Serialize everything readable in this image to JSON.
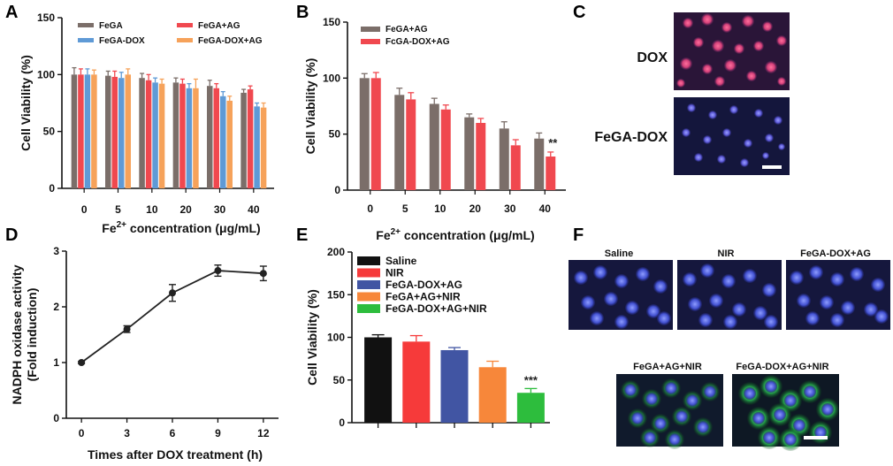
{
  "panel_labels": [
    "A",
    "B",
    "C",
    "D",
    "E",
    "F"
  ],
  "colors": {
    "gray": "#7b6e69",
    "red": "#f0484f",
    "blue": "#5f9ad6",
    "orange": "#f6a25a",
    "black": "#111111",
    "red_e": "#f63a3a",
    "blue_e": "#4155a3",
    "orange_e": "#f7873a",
    "green_e": "#2dbd3d",
    "line_d": "#222222"
  },
  "chart_data": [
    {
      "id": "A",
      "type": "bar",
      "categories": [
        "0",
        "5",
        "10",
        "20",
        "30",
        "40"
      ],
      "xlabel": "Fe2+ concentration (μg/mL)",
      "xlabel_parts": [
        "Fe",
        "2+",
        " concentration (μg/mL)"
      ],
      "ylabel": "Cell Viability (%)",
      "ylim": [
        0,
        150
      ],
      "yticks": [
        0,
        50,
        100,
        150
      ],
      "legend_placement": "top",
      "series": [
        {
          "name": "FeGA",
          "color_key": "gray",
          "values": [
            100,
            99,
            97,
            93,
            90,
            84
          ],
          "errors": [
            6,
            4,
            4,
            4,
            5,
            3
          ]
        },
        {
          "name": "FeGA+AG",
          "color_key": "red",
          "values": [
            100,
            98,
            95,
            92,
            88,
            87
          ],
          "errors": [
            5,
            5,
            5,
            4,
            4,
            3
          ]
        },
        {
          "name": "FeGA-DOX",
          "color_key": "blue",
          "values": [
            100,
            97,
            93,
            88,
            81,
            72
          ],
          "errors": [
            5,
            5,
            4,
            4,
            4,
            3
          ]
        },
        {
          "name": "FeGA-DOX+AG",
          "color_key": "orange",
          "values": [
            100,
            100,
            92,
            88,
            77,
            71
          ],
          "errors": [
            4,
            5,
            4,
            8,
            4,
            4
          ]
        }
      ]
    },
    {
      "id": "B",
      "type": "bar",
      "categories": [
        "0",
        "5",
        "10",
        "20",
        "30",
        "40"
      ],
      "xlabel": "Fe2+ concentration (μg/mL)",
      "xlabel_parts": [
        "Fe",
        "2+",
        " concentration (μg/mL)"
      ],
      "ylabel": "Cell Viability (%)",
      "ylim": [
        0,
        150
      ],
      "yticks": [
        0,
        50,
        100,
        150
      ],
      "legend_placement": "top-left",
      "annotation": "**",
      "series": [
        {
          "name": "FeGA+AG",
          "color_key": "gray",
          "values": [
            100,
            85,
            77,
            65,
            55,
            46
          ],
          "errors": [
            4,
            6,
            5,
            3,
            6,
            5
          ]
        },
        {
          "name": "FcGA-DOX+AG",
          "color_key": "red",
          "values": [
            100,
            81,
            72,
            60,
            40,
            30
          ],
          "errors": [
            5,
            6,
            4,
            4,
            5,
            4
          ]
        }
      ]
    },
    {
      "id": "D",
      "type": "line",
      "x": [
        0,
        3,
        6,
        9,
        12
      ],
      "y": [
        1.0,
        1.6,
        2.25,
        2.65,
        2.6
      ],
      "errors": [
        0.02,
        0.06,
        0.15,
        0.1,
        0.13
      ],
      "xlabel": "Times after DOX treatment (h)",
      "ylabel": "NADPH oxidase activity (Fold induction)",
      "ylabel_lines": [
        "NADPH oxidase activity",
        "(Fold induction)"
      ],
      "xlim": [
        -1,
        13
      ],
      "ylim": [
        0,
        3
      ],
      "xticks": [
        0,
        3,
        6,
        9,
        12
      ],
      "yticks": [
        0,
        1,
        2,
        3
      ]
    },
    {
      "id": "E",
      "type": "bar",
      "categories": [
        "Saline",
        "NIR",
        "FeGA-DOX+AG",
        "FeGA+AG+NIR",
        "FeGA-DOX+AG+NIR"
      ],
      "values": [
        100,
        95,
        85,
        65,
        35
      ],
      "errors": [
        3,
        7,
        3,
        7,
        5
      ],
      "color_keys": [
        "black",
        "red_e",
        "blue_e",
        "orange_e",
        "green_e"
      ],
      "ylabel": "Cell Viability (%)",
      "ylim": [
        0,
        200
      ],
      "yticks": [
        0,
        50,
        100,
        150,
        200
      ],
      "legend_placement": "top-left",
      "annotation": "***"
    }
  ],
  "panel_c": {
    "labels": [
      "DOX",
      "FeGA-DOX"
    ]
  },
  "panel_f": {
    "labels": [
      "Saline",
      "NIR",
      "FeGA-DOX+AG",
      "FeGA+AG+NIR",
      "FeGA-DOX+AG+NIR"
    ]
  }
}
